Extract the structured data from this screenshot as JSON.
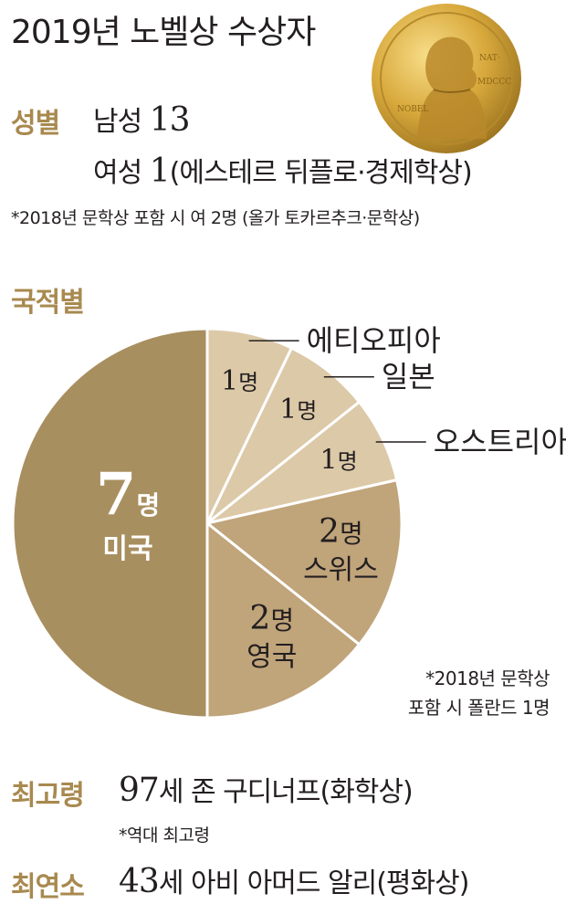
{
  "title": "2019년 노벨상 수상자",
  "gender": {
    "label": "성별",
    "male_label": "남성",
    "male_count": "13",
    "female_label": "여성",
    "female_count": "1",
    "female_detail": "(에스테르 뒤플로·경제학상)",
    "note": "*2018년 문학상 포함 시 여 2명 (올가 토카르추크·문학상)"
  },
  "nationality": {
    "label": "국적별",
    "footnote_line1": "*2018년 문학상",
    "footnote_line2": "포함 시 폴란드 1명"
  },
  "oldest": {
    "label": "최고령",
    "age": "97",
    "text": "세 존 구디너프(화학상)",
    "note": "*역대 최고령"
  },
  "youngest": {
    "label": "최연소",
    "age": "43",
    "text": "세 아비 아머드 알리(평화상)"
  },
  "colors": {
    "gold": "#a8894f",
    "usa": "#a88f5f",
    "uk_swiss": "#c0a47a",
    "small": "#dcc9a8",
    "text": "#231f20"
  },
  "medal_icon": "nobel-medal-icon",
  "chart_data": {
    "type": "pie",
    "title": "국적별",
    "unit": "명",
    "slices": [
      {
        "name": "미국",
        "value": 7,
        "label_num": "7",
        "label_unit": "명",
        "color": "#a88f5f"
      },
      {
        "name": "영국",
        "value": 2,
        "label_num": "2",
        "label_unit": "명",
        "color": "#c0a47a"
      },
      {
        "name": "스위스",
        "value": 2,
        "label_num": "2",
        "label_unit": "명",
        "color": "#c0a47a"
      },
      {
        "name": "오스트리아",
        "value": 1,
        "label_num": "1",
        "label_unit": "명",
        "color": "#dcc9a8"
      },
      {
        "name": "일본",
        "value": 1,
        "label_num": "1",
        "label_unit": "명",
        "color": "#dcc9a8"
      },
      {
        "name": "에티오피아",
        "value": 1,
        "label_num": "1",
        "label_unit": "명",
        "color": "#dcc9a8"
      }
    ]
  }
}
